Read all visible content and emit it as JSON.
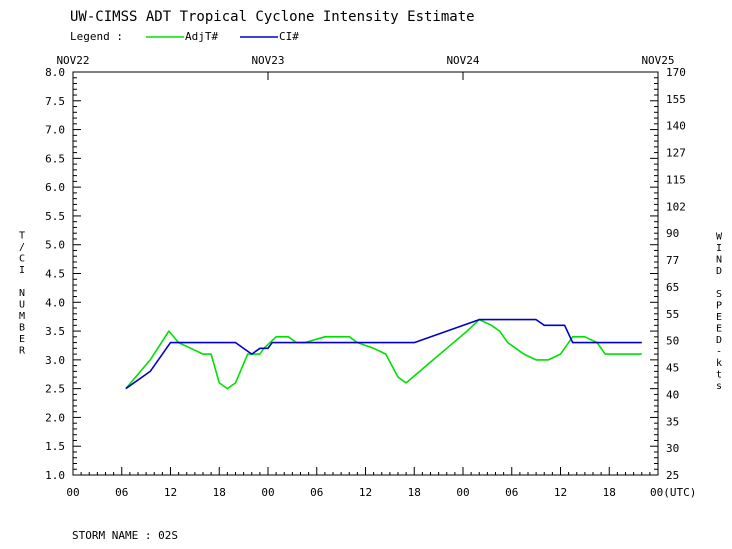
{
  "chart_data": {
    "type": "line",
    "title": "UW-CIMSS ADT Tropical Cyclone Intensity Estimate",
    "legend": {
      "label": "Legend :",
      "placement": "top-left"
    },
    "ylabel": "T/CI NUMBER",
    "y2label": "WIND SPEED-kts",
    "ylim": [
      1.0,
      8.0
    ],
    "y_ticks": [
      "1.0",
      "1.5",
      "2.0",
      "2.5",
      "3.0",
      "3.5",
      "4.0",
      "4.5",
      "5.0",
      "5.5",
      "6.0",
      "6.5",
      "7.0",
      "7.5",
      "8.0"
    ],
    "y2_ticks": [
      "25",
      "30",
      "35",
      "40",
      "45",
      "50",
      "55",
      "65",
      "77",
      "90",
      "102",
      "115",
      "127",
      "140",
      "155",
      "170"
    ],
    "x_date_labels": [
      "NOV22",
      "NOV23",
      "NOV24",
      "NOV25"
    ],
    "x_ticks": [
      "00",
      "06",
      "12",
      "18",
      "00",
      "06",
      "12",
      "18",
      "00",
      "06",
      "12",
      "18",
      "00(UTC)"
    ],
    "x_units": "hours since NOV22 00 UTC",
    "xlim": [
      0,
      72
    ],
    "grid": false,
    "footer": "STORM NAME : 02S",
    "series": [
      {
        "name": "AdjT#",
        "color": "#00e000",
        "x": [
          6.5,
          9.5,
          11.8,
          13,
          14.5,
          16,
          17,
          18,
          19,
          20,
          21.5,
          23,
          23.5,
          25,
          26.5,
          27.5,
          28.5,
          31,
          33.5,
          34,
          35,
          37,
          38.5,
          40,
          41,
          43.5,
          46,
          48.5,
          50,
          51.5,
          52.5,
          53.5,
          54.5,
          55.5,
          57,
          58,
          58.5,
          60,
          60.5,
          61.5,
          62.5,
          63,
          64.5,
          65.5,
          67.5,
          70
        ],
        "y": [
          2.5,
          3.0,
          3.5,
          3.3,
          3.2,
          3.1,
          3.1,
          2.6,
          2.5,
          2.6,
          3.1,
          3.1,
          3.2,
          3.4,
          3.4,
          3.3,
          3.3,
          3.4,
          3.4,
          3.4,
          3.3,
          3.2,
          3.1,
          2.7,
          2.6,
          2.9,
          3.2,
          3.5,
          3.7,
          3.6,
          3.5,
          3.3,
          3.2,
          3.1,
          3.0,
          3.0,
          3.0,
          3.1,
          3.2,
          3.4,
          3.4,
          3.4,
          3.3,
          3.1,
          3.1,
          3.1
        ]
      },
      {
        "name": "CI#",
        "color": "#0000cc",
        "x": [
          6.5,
          9.5,
          12,
          14,
          20,
          22,
          23,
          24,
          24.5,
          25,
          26,
          35,
          42,
          50,
          56,
          57,
          58,
          60,
          60.5,
          61.5,
          62.5,
          63,
          64.5,
          65.5,
          70
        ],
        "y": [
          2.5,
          2.8,
          3.3,
          3.3,
          3.3,
          3.1,
          3.2,
          3.2,
          3.3,
          3.3,
          3.3,
          3.3,
          3.3,
          3.7,
          3.7,
          3.7,
          3.6,
          3.6,
          3.6,
          3.3,
          3.3,
          3.3,
          3.3,
          3.3,
          3.3
        ]
      }
    ]
  }
}
